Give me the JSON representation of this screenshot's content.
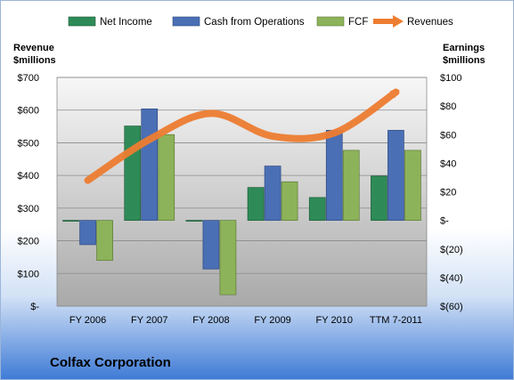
{
  "company_name": "Colfax Corporation",
  "chart_data": {
    "type": "bar",
    "categories": [
      "FY 2006",
      "FY 2007",
      "FY 2008",
      "FY 2009",
      "FY 2010",
      "TTM 7-2011"
    ],
    "left_axis": {
      "title_line1": "Revenue",
      "title_line2": "$millions",
      "ylim": [
        0,
        700
      ],
      "ticks": [
        {
          "value": 0,
          "label": "$-"
        },
        {
          "value": 100,
          "label": "$100"
        },
        {
          "value": 200,
          "label": "$200"
        },
        {
          "value": 300,
          "label": "$300"
        },
        {
          "value": 400,
          "label": "$400"
        },
        {
          "value": 500,
          "label": "$500"
        },
        {
          "value": 600,
          "label": "$600"
        },
        {
          "value": 700,
          "label": "$700"
        }
      ]
    },
    "right_axis": {
      "title_line1": "Earnings",
      "title_line2": "$millions",
      "ylim": [
        -60,
        100
      ],
      "ticks": [
        {
          "value": -60,
          "label": "$(60)"
        },
        {
          "value": -40,
          "label": "$(40)"
        },
        {
          "value": -20,
          "label": "$(20)"
        },
        {
          "value": 0,
          "label": "$-"
        },
        {
          "value": 20,
          "label": "$20"
        },
        {
          "value": 40,
          "label": "$40"
        },
        {
          "value": 60,
          "label": "$60"
        },
        {
          "value": 80,
          "label": "$80"
        },
        {
          "value": 100,
          "label": "$100"
        }
      ]
    },
    "series": [
      {
        "name": "Net Income",
        "type": "bar",
        "axis": "right",
        "color": "#2e8b57",
        "values": [
          0,
          66,
          0,
          23,
          16,
          31
        ]
      },
      {
        "name": "Cash from Operations",
        "type": "bar",
        "axis": "right",
        "color": "#4a6fb5",
        "values": [
          -17,
          78,
          -34,
          38,
          63,
          63
        ]
      },
      {
        "name": "FCF",
        "type": "bar",
        "axis": "right",
        "color": "#8db35a",
        "values": [
          -28,
          60,
          -52,
          27,
          49,
          49
        ]
      },
      {
        "name": "Revenues",
        "type": "line",
        "axis": "left",
        "color": "#ed7d31",
        "values": [
          385,
          510,
          590,
          520,
          530,
          655
        ]
      }
    ],
    "grid": true,
    "legend": "top"
  }
}
